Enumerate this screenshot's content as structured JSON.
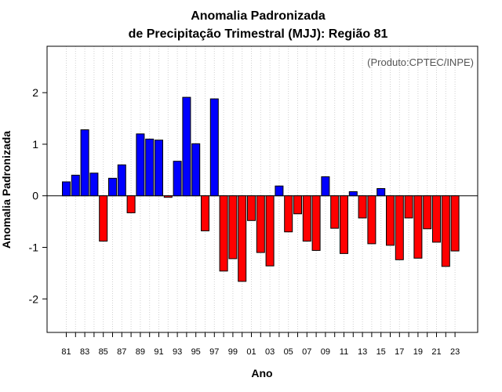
{
  "chart_data": {
    "type": "bar",
    "title": "Anomalia Padronizada",
    "subtitle": "de Precipitação Trimestral (MJJ): Região 81",
    "annotation": "(Produto:CPTEC/INPE)",
    "xlabel": "Ano",
    "ylabel": "Anomalia Padronizada",
    "ylim": [
      -2.65,
      2.9
    ],
    "yticks": [
      -2,
      -1,
      0,
      1,
      2
    ],
    "ytick_labels": [
      "-2",
      "-1",
      "0",
      "1",
      "2"
    ],
    "xtick_labels": [
      "81",
      "83",
      "85",
      "87",
      "89",
      "91",
      "93",
      "95",
      "97",
      "99",
      "01",
      "03",
      "05",
      "07",
      "09",
      "11",
      "13",
      "15",
      "17",
      "19",
      "21",
      "23"
    ],
    "categories": [
      "1981",
      "1982",
      "1983",
      "1984",
      "1985",
      "1986",
      "1987",
      "1988",
      "1989",
      "1990",
      "1991",
      "1992",
      "1993",
      "1994",
      "1995",
      "1996",
      "1997",
      "1998",
      "1999",
      "2000",
      "2001",
      "2002",
      "2003",
      "2004",
      "2005",
      "2006",
      "2007",
      "2008",
      "2009",
      "2010",
      "2011",
      "2012",
      "2013",
      "2014",
      "2015",
      "2016",
      "2017",
      "2018",
      "2019",
      "2020",
      "2021",
      "2022",
      "2023"
    ],
    "values": [
      0.27,
      0.4,
      1.28,
      0.44,
      -0.88,
      0.34,
      0.6,
      -0.33,
      1.2,
      1.1,
      1.08,
      -0.03,
      0.67,
      1.91,
      1.01,
      -0.68,
      1.88,
      -1.46,
      -1.22,
      -1.66,
      -0.48,
      -1.1,
      -1.36,
      0.19,
      -0.7,
      -0.35,
      -0.88,
      -1.06,
      0.37,
      -0.63,
      -1.12,
      0.08,
      -0.43,
      -0.93,
      0.14,
      -0.96,
      -1.24,
      -0.43,
      -1.21,
      -0.64,
      -0.9,
      -1.37,
      -1.07
    ],
    "positive_color": "#0000ff",
    "negative_color": "#ff0000",
    "grid": true
  }
}
